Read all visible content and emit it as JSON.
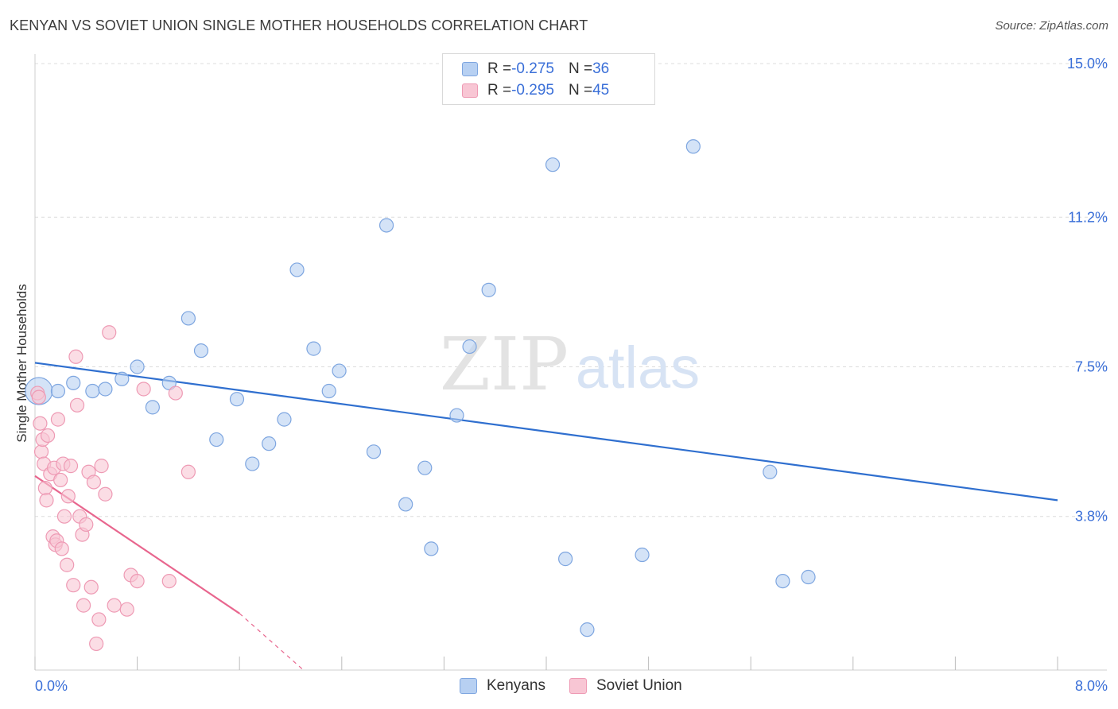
{
  "title": "KENYAN VS SOVIET UNION SINGLE MOTHER HOUSEHOLDS CORRELATION CHART",
  "source": "Source: ZipAtlas.com",
  "watermark": {
    "zip": "ZIP",
    "atlas": "atlas"
  },
  "legend": {
    "rows": [
      {
        "r_label": "R = ",
        "r_value": "-0.275",
        "n_label": "N = ",
        "n_value": "36"
      },
      {
        "r_label": "R = ",
        "r_value": "-0.295",
        "n_label": "N = ",
        "n_value": "45"
      }
    ]
  },
  "bottom_legend": {
    "kenyans": "Kenyans",
    "soviet": "Soviet Union"
  },
  "colors": {
    "kenyan_fill": "#b7d0f2",
    "kenyan_stroke": "#7ea6e0",
    "kenyan_line": "#2f6fcf",
    "soviet_fill": "#f8c6d4",
    "soviet_stroke": "#ee9ab4",
    "soviet_line": "#e8668e",
    "tick_text": "#3a6fd8",
    "grid": "#dcdcdc"
  },
  "chart_data": {
    "type": "scatter",
    "title": "KENYAN VS SOVIET UNION SINGLE MOTHER HOUSEHOLDS CORRELATION CHART",
    "xlabel": "",
    "ylabel": "Single Mother Households",
    "xlim": [
      0,
      8.0
    ],
    "ylim": [
      0,
      15.0
    ],
    "x_tick_labels": [
      "0.0%",
      "8.0%"
    ],
    "y_ticks": [
      3.8,
      7.5,
      11.2,
      15.0
    ],
    "y_tick_labels": [
      "3.8%",
      "7.5%",
      "11.2%",
      "15.0%"
    ],
    "series": [
      {
        "name": "Kenyans",
        "r": -0.275,
        "n": 36,
        "trend": {
          "x": [
            0.0,
            8.0
          ],
          "y": [
            7.6,
            4.2
          ]
        },
        "points": [
          {
            "x": 0.03,
            "y": 6.9,
            "big": true
          },
          {
            "x": 0.18,
            "y": 6.9
          },
          {
            "x": 0.3,
            "y": 7.1
          },
          {
            "x": 0.45,
            "y": 6.9
          },
          {
            "x": 0.55,
            "y": 6.95
          },
          {
            "x": 0.68,
            "y": 7.2
          },
          {
            "x": 0.8,
            "y": 7.5
          },
          {
            "x": 0.92,
            "y": 6.5
          },
          {
            "x": 1.05,
            "y": 7.1
          },
          {
            "x": 1.2,
            "y": 8.7
          },
          {
            "x": 1.3,
            "y": 7.9
          },
          {
            "x": 1.42,
            "y": 5.7
          },
          {
            "x": 1.58,
            "y": 6.7
          },
          {
            "x": 1.7,
            "y": 5.1
          },
          {
            "x": 1.83,
            "y": 5.6
          },
          {
            "x": 1.95,
            "y": 6.2
          },
          {
            "x": 2.05,
            "y": 9.9
          },
          {
            "x": 2.18,
            "y": 7.95
          },
          {
            "x": 2.3,
            "y": 6.9
          },
          {
            "x": 2.38,
            "y": 7.4
          },
          {
            "x": 2.65,
            "y": 5.4
          },
          {
            "x": 2.75,
            "y": 11.0
          },
          {
            "x": 2.9,
            "y": 4.1
          },
          {
            "x": 3.05,
            "y": 5.0
          },
          {
            "x": 3.1,
            "y": 3.0
          },
          {
            "x": 3.3,
            "y": 6.3
          },
          {
            "x": 3.4,
            "y": 8.0
          },
          {
            "x": 3.55,
            "y": 9.4
          },
          {
            "x": 4.05,
            "y": 12.5
          },
          {
            "x": 4.15,
            "y": 2.75
          },
          {
            "x": 4.32,
            "y": 1.0
          },
          {
            "x": 4.75,
            "y": 2.85
          },
          {
            "x": 5.15,
            "y": 12.95
          },
          {
            "x": 5.75,
            "y": 4.9
          },
          {
            "x": 5.85,
            "y": 2.2
          },
          {
            "x": 6.05,
            "y": 2.3
          }
        ]
      },
      {
        "name": "Soviet Union",
        "r": -0.295,
        "n": 45,
        "trend": {
          "x": [
            0.0,
            1.6
          ],
          "y": [
            4.8,
            1.4
          ]
        },
        "trend_dashed": {
          "x": [
            1.6,
            2.1
          ],
          "y": [
            1.4,
            0.0
          ]
        },
        "points": [
          {
            "x": 0.02,
            "y": 6.85
          },
          {
            "x": 0.03,
            "y": 6.75
          },
          {
            "x": 0.04,
            "y": 6.1
          },
          {
            "x": 0.05,
            "y": 5.4
          },
          {
            "x": 0.06,
            "y": 5.7
          },
          {
            "x": 0.07,
            "y": 5.1
          },
          {
            "x": 0.08,
            "y": 4.5
          },
          {
            "x": 0.09,
            "y": 4.2
          },
          {
            "x": 0.1,
            "y": 5.8
          },
          {
            "x": 0.12,
            "y": 4.85
          },
          {
            "x": 0.14,
            "y": 3.3
          },
          {
            "x": 0.15,
            "y": 5.0
          },
          {
            "x": 0.16,
            "y": 3.1
          },
          {
            "x": 0.17,
            "y": 3.2
          },
          {
            "x": 0.18,
            "y": 6.2
          },
          {
            "x": 0.2,
            "y": 4.7
          },
          {
            "x": 0.21,
            "y": 3.0
          },
          {
            "x": 0.22,
            "y": 5.1
          },
          {
            "x": 0.23,
            "y": 3.8
          },
          {
            "x": 0.25,
            "y": 2.6
          },
          {
            "x": 0.26,
            "y": 4.3
          },
          {
            "x": 0.28,
            "y": 5.05
          },
          {
            "x": 0.3,
            "y": 2.1
          },
          {
            "x": 0.32,
            "y": 7.75
          },
          {
            "x": 0.33,
            "y": 6.55
          },
          {
            "x": 0.35,
            "y": 3.8
          },
          {
            "x": 0.37,
            "y": 3.35
          },
          {
            "x": 0.38,
            "y": 1.6
          },
          {
            "x": 0.4,
            "y": 3.6
          },
          {
            "x": 0.42,
            "y": 4.9
          },
          {
            "x": 0.44,
            "y": 2.05
          },
          {
            "x": 0.46,
            "y": 4.65
          },
          {
            "x": 0.48,
            "y": 0.65
          },
          {
            "x": 0.5,
            "y": 1.25
          },
          {
            "x": 0.52,
            "y": 5.05
          },
          {
            "x": 0.55,
            "y": 4.35
          },
          {
            "x": 0.58,
            "y": 8.35
          },
          {
            "x": 0.62,
            "y": 1.6
          },
          {
            "x": 0.72,
            "y": 1.5
          },
          {
            "x": 0.75,
            "y": 2.35
          },
          {
            "x": 0.8,
            "y": 2.2
          },
          {
            "x": 0.85,
            "y": 6.95
          },
          {
            "x": 1.05,
            "y": 2.2
          },
          {
            "x": 1.2,
            "y": 4.9
          },
          {
            "x": 1.1,
            "y": 6.85
          }
        ]
      }
    ]
  }
}
